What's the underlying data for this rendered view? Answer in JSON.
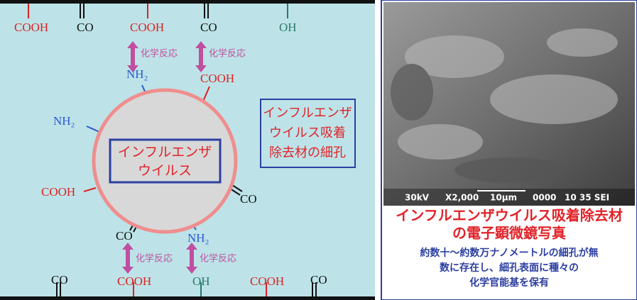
{
  "diagram": {
    "top_groups": [
      "COOH",
      "CO",
      "COOH",
      "CO",
      "OH"
    ],
    "reactions": [
      "化学反応",
      "化学反応",
      "化学反応",
      "化学反応"
    ],
    "functional_groups": [
      "NH₂",
      "COOH",
      "NH₂",
      "COOH",
      "CO",
      "CO",
      "NH₂"
    ],
    "virus_label": [
      "インフルエンザ",
      "ウイルス"
    ],
    "pore_label": [
      "インフルエンザ",
      "ウイルス吸着",
      "除去材の細孔"
    ],
    "bottom_groups": [
      "CO",
      "COOH",
      "OH",
      "COOH",
      "CO"
    ]
  },
  "photo": {
    "scale_bar": [
      "30kV",
      "X2,000",
      "10μm",
      "0000",
      "10 35 SEI"
    ],
    "caption_title": [
      "インフルエンザウイルス吸着除去材",
      "の電子顕微鏡写真"
    ],
    "caption_body": [
      "約数十～約数万ナノメートルの細孔が無",
      "数に存在し、細孔表面に種々の",
      "化学官能基を保有"
    ]
  }
}
